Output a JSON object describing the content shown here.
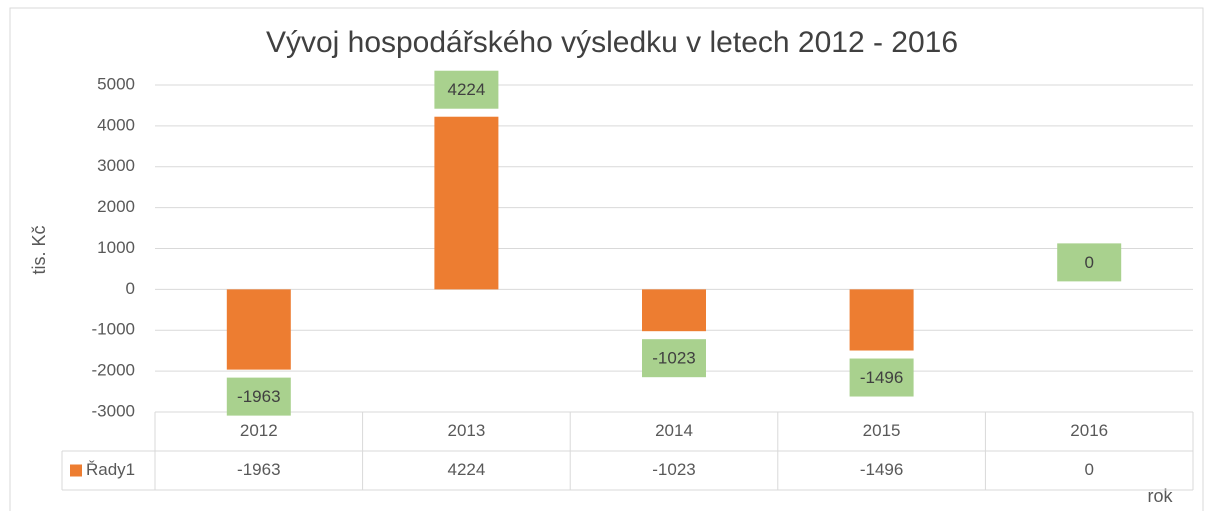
{
  "chart_data": {
    "type": "bar",
    "title": "Vývoj hospodářského výsledku v letech 2012 - 2016",
    "y_label": "tis. Kč",
    "x_label": "rok",
    "categories": [
      "2012",
      "2013",
      "2014",
      "2015",
      "2016"
    ],
    "series": [
      {
        "name": "Řady1",
        "color": "#ed7d31",
        "values": [
          -1963,
          4224,
          -1023,
          -1496,
          0
        ]
      }
    ],
    "label_color": "#a9d18e",
    "ylim": [
      -3000,
      5000
    ],
    "yticks": [
      -3000,
      -2000,
      -1000,
      0,
      1000,
      2000,
      3000,
      4000,
      5000
    ],
    "grid": true,
    "data_table": true
  }
}
